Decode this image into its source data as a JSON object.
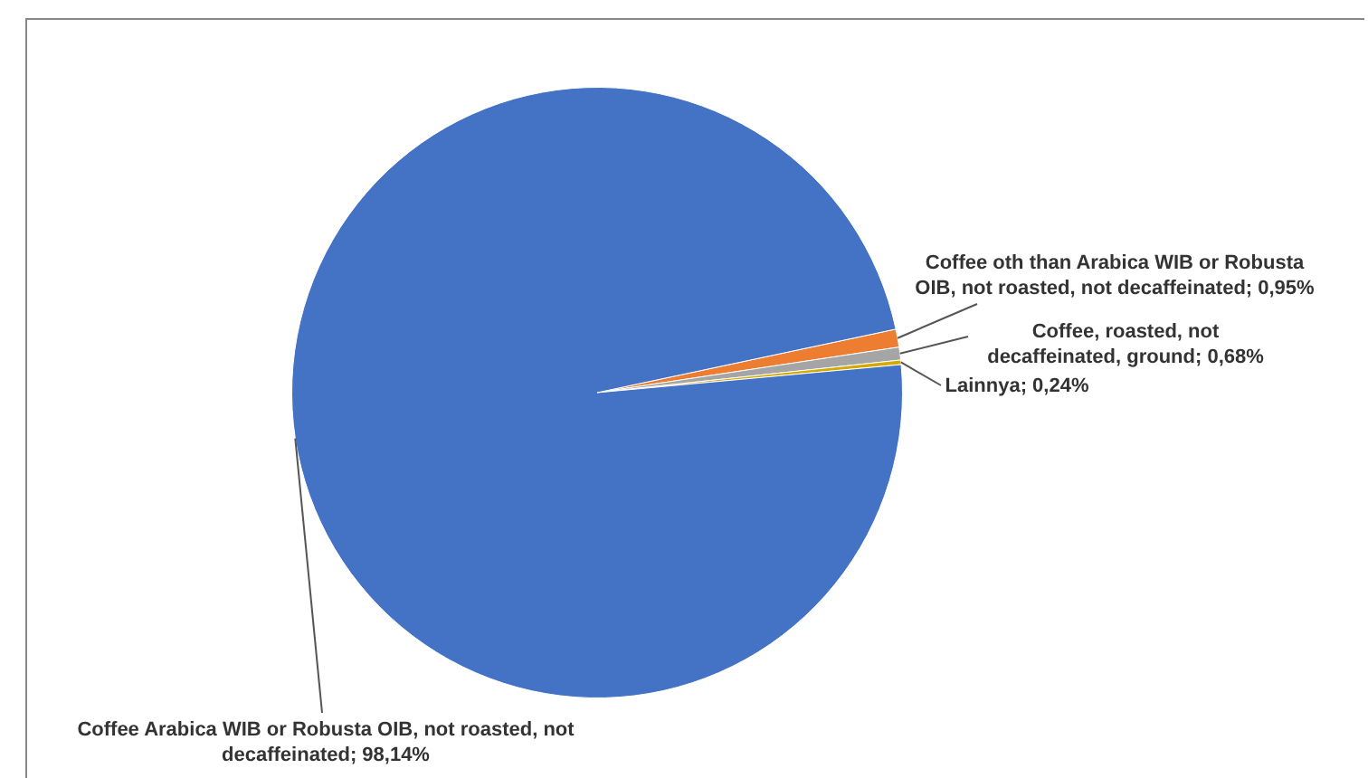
{
  "chart_data": {
    "type": "pie",
    "categories": [
      "Coffee oth than Arabica WIB or Robusta OIB, not roasted, not decaffeinated",
      "Coffee, roasted, not decaffeinated, ground",
      "Lainnya",
      "Coffee Arabica WIB or Robusta OIB, not roasted, not decaffeinated"
    ],
    "values": [
      0.95,
      0.68,
      0.24,
      98.14
    ],
    "value_labels": [
      "0,95%",
      "0,68%",
      "0,24%",
      "98,14%"
    ],
    "colors": [
      "#ed7d31",
      "#a5a5a5",
      "#d4a900",
      "#4472c4"
    ],
    "legend": false
  }
}
